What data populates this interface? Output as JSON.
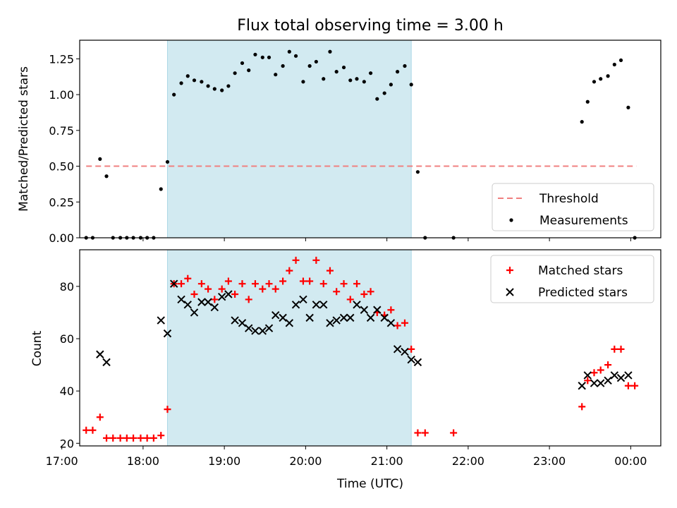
{
  "figure": {
    "title": "Flux total observing time = 3.00 h"
  },
  "colors": {
    "highlight": "#add8e6",
    "threshold": "#f08080",
    "matched": "#ff0000",
    "predicted": "#000000",
    "measurement": "#000000"
  },
  "chart_data": [
    {
      "type": "scatter",
      "panel": "top",
      "ylabel": "Matched/Predicted stars",
      "xlabel": "",
      "xlim": [
        17.22,
        24.37
      ],
      "ylim": [
        0,
        1.38
      ],
      "yticks": [
        0.0,
        0.25,
        0.5,
        0.75,
        1.0,
        1.25
      ],
      "ytick_labels": [
        "0.00",
        "0.25",
        "0.50",
        "0.75",
        "1.00",
        "1.25"
      ],
      "xticks": [
        17,
        18,
        19,
        20,
        21,
        22,
        23,
        24
      ],
      "highlight_range": [
        18.3,
        21.3
      ],
      "threshold": {
        "name": "Threshold",
        "y": 0.5,
        "x": [
          17.3,
          24.07
        ],
        "style": "dashed"
      },
      "legend": {
        "placement": "lower right",
        "entries": [
          "Threshold",
          "Measurements"
        ]
      },
      "series": [
        {
          "name": "Measurements",
          "marker": "dot",
          "x": [
            17.3,
            17.38,
            17.47,
            17.55,
            17.63,
            17.72,
            17.8,
            17.88,
            17.97,
            18.05,
            18.13,
            18.22,
            18.3,
            18.38,
            18.47,
            18.55,
            18.63,
            18.72,
            18.8,
            18.88,
            18.97,
            19.05,
            19.13,
            19.22,
            19.3,
            19.38,
            19.47,
            19.55,
            19.63,
            19.72,
            19.8,
            19.88,
            19.97,
            20.05,
            20.13,
            20.22,
            20.3,
            20.38,
            20.47,
            20.55,
            20.63,
            20.72,
            20.8,
            20.88,
            20.97,
            21.05,
            21.13,
            21.22,
            21.3,
            21.38,
            21.47,
            21.82,
            23.4,
            23.47,
            23.55,
            23.63,
            23.72,
            23.8,
            23.88,
            23.97,
            24.05
          ],
          "y": [
            0.0,
            0.0,
            0.55,
            0.43,
            0.0,
            0.0,
            0.0,
            0.0,
            0.0,
            0.0,
            0.0,
            0.34,
            0.53,
            1.0,
            1.08,
            1.13,
            1.1,
            1.09,
            1.06,
            1.04,
            1.03,
            1.06,
            1.15,
            1.22,
            1.17,
            1.28,
            1.26,
            1.26,
            1.14,
            1.2,
            1.3,
            1.27,
            1.09,
            1.2,
            1.23,
            1.11,
            1.3,
            1.16,
            1.19,
            1.1,
            1.11,
            1.09,
            1.15,
            0.97,
            1.01,
            1.07,
            1.16,
            1.2,
            1.07,
            0.46,
            0.0,
            0.0,
            0.81,
            0.95,
            1.09,
            1.11,
            1.13,
            1.21,
            1.24,
            0.91,
            0.0
          ]
        }
      ]
    },
    {
      "type": "scatter",
      "panel": "bottom",
      "ylabel": "Count",
      "xlabel": "Time (UTC)",
      "xlim": [
        17.22,
        24.37
      ],
      "ylim": [
        19,
        94
      ],
      "yticks": [
        20,
        40,
        60,
        80
      ],
      "ytick_labels": [
        "20",
        "40",
        "60",
        "80"
      ],
      "xticks": [
        17,
        18,
        19,
        20,
        21,
        22,
        23,
        24
      ],
      "xtick_labels": [
        "17:00",
        "18:00",
        "19:00",
        "20:00",
        "21:00",
        "22:00",
        "23:00",
        "00:00"
      ],
      "highlight_range": [
        18.3,
        21.3
      ],
      "legend": {
        "placement": "upper right",
        "entries": [
          "Matched stars",
          "Predicted stars"
        ]
      },
      "series": [
        {
          "name": "Matched stars",
          "marker": "plus",
          "x": [
            17.3,
            17.38,
            17.47,
            17.55,
            17.63,
            17.72,
            17.8,
            17.88,
            17.97,
            18.05,
            18.13,
            18.22,
            18.3,
            18.38,
            18.47,
            18.55,
            18.63,
            18.72,
            18.8,
            18.88,
            18.97,
            19.05,
            19.13,
            19.22,
            19.3,
            19.38,
            19.47,
            19.55,
            19.63,
            19.72,
            19.8,
            19.88,
            19.97,
            20.05,
            20.13,
            20.22,
            20.3,
            20.38,
            20.47,
            20.55,
            20.63,
            20.72,
            20.8,
            20.88,
            20.97,
            21.05,
            21.13,
            21.22,
            21.3,
            21.38,
            21.47,
            21.82,
            23.4,
            23.47,
            23.55,
            23.63,
            23.72,
            23.8,
            23.88,
            23.97,
            24.05
          ],
          "y": [
            25,
            25,
            30,
            22,
            22,
            22,
            22,
            22,
            22,
            22,
            22,
            23,
            33,
            81,
            81,
            83,
            77,
            81,
            79,
            75,
            79,
            82,
            77,
            81,
            75,
            81,
            79,
            81,
            79,
            82,
            86,
            90,
            82,
            82,
            90,
            81,
            86,
            78,
            81,
            75,
            81,
            77,
            78,
            70,
            69,
            71,
            65,
            66,
            56,
            24,
            24,
            24,
            34,
            44,
            47,
            48,
            50,
            56,
            56,
            42,
            42
          ]
        },
        {
          "name": "Predicted stars",
          "marker": "x",
          "x": [
            17.47,
            17.55,
            18.22,
            18.3,
            18.38,
            18.47,
            18.55,
            18.63,
            18.72,
            18.8,
            18.88,
            18.97,
            19.05,
            19.13,
            19.22,
            19.3,
            19.38,
            19.47,
            19.55,
            19.63,
            19.72,
            19.8,
            19.88,
            19.97,
            20.05,
            20.13,
            20.22,
            20.3,
            20.38,
            20.47,
            20.55,
            20.63,
            20.72,
            20.8,
            20.88,
            20.97,
            21.05,
            21.13,
            21.22,
            21.3,
            21.38,
            23.4,
            23.47,
            23.55,
            23.63,
            23.72,
            23.8,
            23.88,
            23.97
          ],
          "y": [
            54,
            51,
            67,
            62,
            81,
            75,
            73,
            70,
            74,
            74,
            72,
            76,
            77,
            67,
            66,
            64,
            63,
            63,
            64,
            69,
            68,
            66,
            73,
            75,
            68,
            73,
            73,
            66,
            67,
            68,
            68,
            73,
            71,
            68,
            71,
            68,
            66,
            56,
            55,
            52,
            51,
            42,
            46,
            43,
            43,
            44,
            46,
            45,
            46
          ]
        }
      ]
    }
  ]
}
